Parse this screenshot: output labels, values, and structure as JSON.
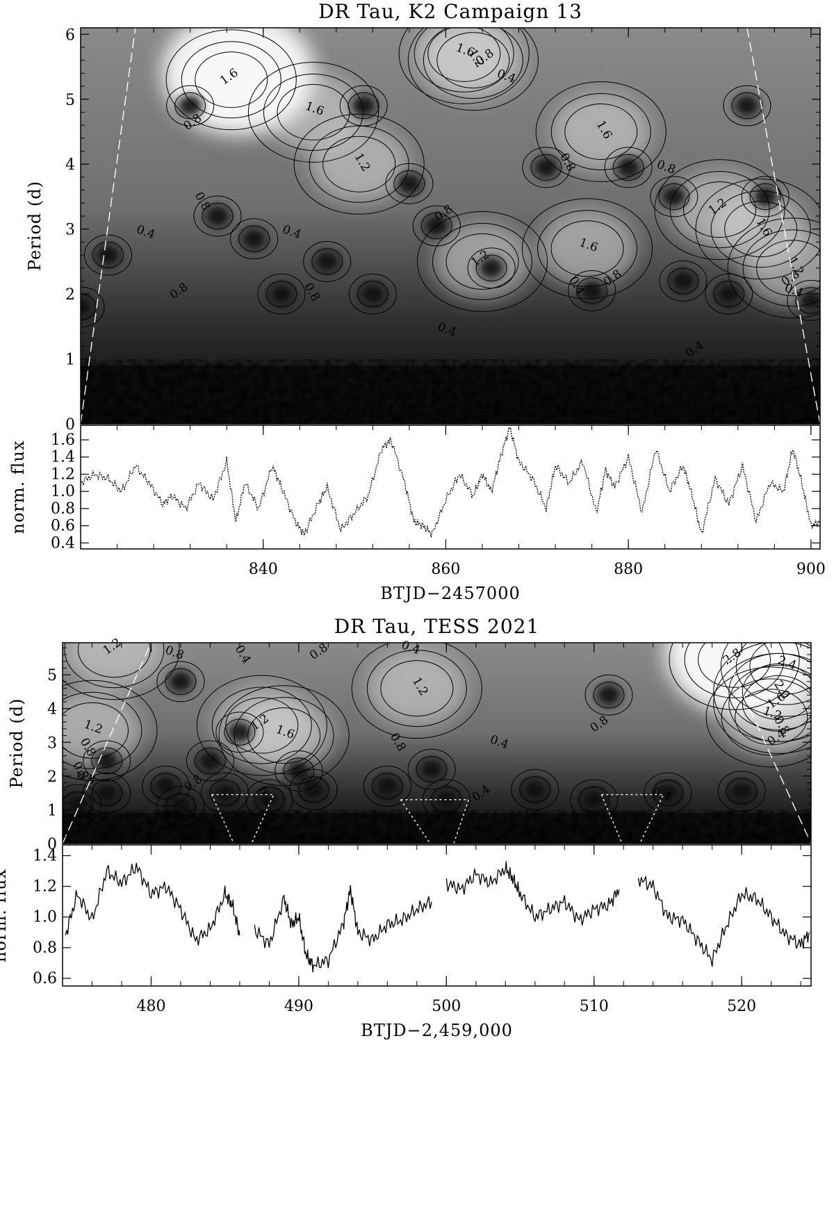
{
  "chart_data": [
    {
      "type": "heatmap",
      "title": "DR Tau, K2 Campaign 13",
      "xlabel": "BTJD−2457000",
      "ylabel": "Period (d)",
      "xlim": [
        820,
        901
      ],
      "ylim": [
        0,
        6.1
      ],
      "x_ticks": [
        "840",
        "860",
        "880",
        "900"
      ],
      "x_tick_values": [
        840,
        860,
        880,
        900
      ],
      "y_ticks": [
        "0",
        "1",
        "2",
        "3",
        "4",
        "5",
        "6"
      ],
      "y_tick_values": [
        0,
        1,
        2,
        3,
        4,
        5,
        6
      ],
      "colormap": "grayscale (black low, white high)",
      "contour_labels": [
        "1.6",
        "1.6",
        "1.2",
        "0.8",
        "0.4",
        "0.8",
        "0.8",
        "0.4",
        "0.8",
        "1.2",
        "1.6",
        "1.6",
        "1.2",
        "0.8",
        "0.8",
        "0.8",
        "1.6",
        "1.2",
        "0.8",
        "0.4",
        "0.4",
        "0.8",
        "0.4",
        "1.2",
        "0.8",
        "0.4",
        "1.6",
        "0.4"
      ],
      "contour_label_points": [
        [
          836.5,
          5.3
        ],
        [
          845.5,
          4.8
        ],
        [
          850.5,
          4.0
        ],
        [
          832.5,
          4.6
        ],
        [
          827.0,
          2.9
        ],
        [
          833.0,
          3.4
        ],
        [
          831.0,
          2.0
        ],
        [
          843.0,
          2.9
        ],
        [
          845.0,
          2.0
        ],
        [
          864.0,
          2.5
        ],
        [
          875.5,
          2.7
        ],
        [
          877.0,
          4.5
        ],
        [
          890.0,
          3.3
        ],
        [
          884.0,
          3.9
        ],
        [
          873.0,
          4.0
        ],
        [
          860.0,
          3.2
        ],
        [
          862.0,
          5.7
        ],
        [
          863.0,
          5.6
        ],
        [
          864.5,
          5.6
        ],
        [
          866.5,
          5.3
        ],
        [
          874.0,
          2.1
        ],
        [
          878.5,
          2.2
        ],
        [
          860.0,
          1.4
        ],
        [
          898.0,
          2.4
        ],
        [
          898.0,
          2.2
        ],
        [
          898.0,
          2.0
        ],
        [
          894.5,
          3.0
        ],
        [
          887.5,
          1.1
        ]
      ],
      "peak_points": [
        [
          832,
          4.9
        ],
        [
          851,
          4.9
        ],
        [
          893,
          4.9
        ],
        [
          871,
          3.95
        ],
        [
          880,
          3.95
        ],
        [
          895,
          3.5
        ],
        [
          885,
          3.5
        ],
        [
          856,
          3.7
        ],
        [
          835,
          3.2
        ],
        [
          859,
          3.05
        ],
        [
          839,
          2.85
        ],
        [
          865,
          2.4
        ],
        [
          823,
          2.6
        ],
        [
          847,
          2.5
        ],
        [
          886,
          2.2
        ],
        [
          891,
          2.0
        ],
        [
          900,
          1.9
        ],
        [
          876,
          2.05
        ],
        [
          852,
          2.0
        ],
        [
          842,
          2.0
        ],
        [
          820,
          1.8
        ]
      ],
      "cone_of_influence": [
        [
          820,
          0
        ],
        [
          826,
          6.1
        ],
        [
          893,
          6.1
        ],
        [
          901,
          0
        ]
      ],
      "panel": {
        "ylabel": "norm. flux",
        "y_ticks": [
          "0.4",
          "0.6",
          "0.8",
          "1.0",
          "1.2",
          "1.4",
          "1.6"
        ],
        "y_tick_values": [
          0.4,
          0.6,
          0.8,
          1.0,
          1.2,
          1.4,
          1.6
        ],
        "ylim": [
          0.33,
          1.77
        ],
        "series": [
          {
            "x": [
              820,
              821.5,
              823,
              824.5,
              826,
              827.5,
              829,
              830,
              831.5,
              833,
              834.5,
              836,
              837,
              838,
              839.5,
              841,
              842,
              843.5,
              844.5,
              846,
              847,
              848.5,
              850,
              851.5,
              853,
              854,
              855.5,
              856.5,
              857.5,
              858.5,
              860,
              861.5,
              863,
              864,
              865,
              866,
              867,
              868,
              869.5,
              871,
              872,
              873.5,
              875,
              876.5,
              877.5,
              878.5,
              880,
              881.5,
              883,
              884.5,
              886,
              887,
              888,
              889.5,
              891,
              892.5,
              894,
              895.5,
              897,
              898,
              899,
              900,
              901
            ],
            "y": [
              1.1,
              1.2,
              1.15,
              1.0,
              1.3,
              1.1,
              0.85,
              0.95,
              0.8,
              1.1,
              0.9,
              1.35,
              0.65,
              1.1,
              0.8,
              1.3,
              1.05,
              0.65,
              0.5,
              0.85,
              1.05,
              0.55,
              0.75,
              0.95,
              1.5,
              1.6,
              1.1,
              0.65,
              0.6,
              0.5,
              0.9,
              1.2,
              0.95,
              1.2,
              1.0,
              1.4,
              1.75,
              1.35,
              1.15,
              0.8,
              1.3,
              1.1,
              1.35,
              0.75,
              1.25,
              1.05,
              1.4,
              0.75,
              1.5,
              1.0,
              1.3,
              0.95,
              0.5,
              1.15,
              0.85,
              1.3,
              0.65,
              1.1,
              1.0,
              1.5,
              1.1,
              0.6,
              0.65
            ]
          }
        ]
      }
    },
    {
      "type": "heatmap",
      "title": "DR Tau, TESS 2021",
      "xlabel": "BTJD−2,459,000",
      "ylabel": "Period (d)",
      "xlim": [
        474,
        524.7
      ],
      "ylim": [
        0,
        5.95
      ],
      "x_ticks": [
        "480",
        "490",
        "500",
        "510",
        "520"
      ],
      "x_tick_values": [
        480,
        490,
        500,
        510,
        520
      ],
      "y_ticks": [
        "0",
        "1",
        "2",
        "3",
        "4",
        "5"
      ],
      "y_tick_values": [
        0,
        1,
        2,
        3,
        4,
        5
      ],
      "colormap": "grayscale (black low, white high)",
      "contour_labels": [
        "1.2",
        "0.8",
        "0.4",
        "0.8",
        "0.4",
        "1.2",
        "1.2",
        "1.6",
        "0.8",
        "0.8",
        "0.4",
        "0.8",
        "2.8",
        "2.4",
        "2.0",
        "1.6",
        "1.2",
        "0.8",
        "0.4",
        "1.2",
        "0.8",
        "0.8",
        "0.8",
        "0.4",
        "0.4",
        "0.4",
        "0.4"
      ],
      "contour_label_points": [
        [
          477.5,
          5.75
        ],
        [
          481.5,
          5.55
        ],
        [
          486.0,
          5.55
        ],
        [
          491.5,
          5.6
        ],
        [
          497.5,
          5.7
        ],
        [
          498.0,
          4.6
        ],
        [
          487.5,
          3.5
        ],
        [
          489.0,
          3.2
        ],
        [
          496.5,
          2.95
        ],
        [
          510.5,
          3.45
        ],
        [
          503.5,
          2.9
        ],
        [
          475.5,
          2.8
        ],
        [
          519.5,
          5.45
        ],
        [
          523.0,
          5.25
        ],
        [
          522.5,
          4.5
        ],
        [
          522.5,
          4.15
        ],
        [
          522.0,
          3.75
        ],
        [
          522.5,
          3.45
        ],
        [
          522.5,
          3.05
        ],
        [
          476.0,
          3.35
        ],
        [
          475.0,
          2.1
        ],
        [
          483.0,
          1.7
        ],
        [
          475.5,
          1.85
        ],
        [
          487.5,
          1.35
        ],
        [
          502.5,
          1.4
        ],
        [
          514.5,
          1.35
        ],
        [
          481.0,
          0.65
        ]
      ],
      "peak_points": [
        [
          482,
          4.8
        ],
        [
          511,
          4.4
        ],
        [
          486,
          3.3
        ],
        [
          477,
          2.45
        ],
        [
          484,
          2.45
        ],
        [
          490,
          2.15
        ],
        [
          499,
          2.2
        ],
        [
          477,
          1.5
        ],
        [
          481,
          1.7
        ],
        [
          485,
          1.5
        ],
        [
          491,
          1.6
        ],
        [
          496,
          1.7
        ],
        [
          506,
          1.6
        ],
        [
          515,
          1.5
        ],
        [
          520,
          1.55
        ],
        [
          482,
          1.1
        ],
        [
          488,
          1.3
        ],
        [
          500,
          1.3
        ],
        [
          510,
          1.3
        ],
        [
          475,
          1.15
        ]
      ],
      "dashed_boundaries": [
        [
          [
            484.1,
            1.45
          ],
          [
            488.3,
            1.45
          ],
          [
            486.8,
            0.0
          ]
        ],
        [
          [
            484.1,
            1.45
          ],
          [
            485.6,
            0.0
          ]
        ],
        [
          [
            496.9,
            1.3
          ],
          [
            501.5,
            1.3
          ],
          [
            500.5,
            0.0
          ]
        ],
        [
          [
            496.9,
            1.3
          ],
          [
            498.9,
            0.0
          ]
        ],
        [
          [
            510.5,
            1.45
          ],
          [
            514.7,
            1.45
          ],
          [
            513.1,
            0.0
          ]
        ],
        [
          [
            510.5,
            1.45
          ],
          [
            511.9,
            0.0
          ]
        ]
      ],
      "cone_of_influence": [
        [
          474,
          0
        ],
        [
          480,
          5.95
        ],
        [
          518.5,
          5.95
        ],
        [
          524.7,
          0
        ]
      ],
      "panel": {
        "ylabel": "norm. flux",
        "y_ticks": [
          "0.6",
          "0.8",
          "1.0",
          "1.2",
          "1.4"
        ],
        "y_tick_values": [
          0.6,
          0.8,
          1.0,
          1.2,
          1.4
        ],
        "ylim": [
          0.55,
          1.47
        ],
        "series": [
          {
            "x": [
              474.2,
              475,
              476,
              477,
              478,
              479,
              480,
              481,
              482,
              483,
              484,
              485,
              485.5,
              486
            ],
            "y": [
              0.88,
              1.15,
              0.98,
              1.3,
              1.22,
              1.33,
              1.15,
              1.2,
              1.05,
              0.85,
              0.92,
              1.15,
              1.08,
              0.88
            ]
          },
          {
            "x": [
              487,
              488,
              489,
              489.5,
              490,
              490.5,
              491,
              492,
              493,
              493.5,
              494,
              495,
              496,
              497,
              498,
              499
            ],
            "y": [
              0.92,
              0.82,
              1.12,
              0.95,
              1.0,
              0.75,
              0.68,
              0.72,
              0.95,
              1.18,
              0.9,
              0.85,
              0.95,
              0.98,
              1.05,
              1.1
            ]
          },
          {
            "x": [
              500,
              501,
              502,
              503,
              504,
              504.5,
              505,
              506,
              507,
              508,
              509,
              510,
              511,
              511.7
            ],
            "y": [
              1.22,
              1.18,
              1.28,
              1.22,
              1.32,
              1.25,
              1.15,
              1.0,
              1.05,
              1.1,
              0.98,
              1.05,
              1.08,
              1.18
            ]
          },
          {
            "x": [
              513,
              514,
              515,
              516,
              517,
              518,
              519,
              520,
              521,
              522,
              523,
              524,
              524.6
            ],
            "y": [
              1.25,
              1.2,
              1.0,
              0.98,
              0.85,
              0.72,
              0.95,
              1.15,
              1.12,
              1.0,
              0.88,
              0.82,
              0.9
            ]
          }
        ]
      }
    }
  ]
}
